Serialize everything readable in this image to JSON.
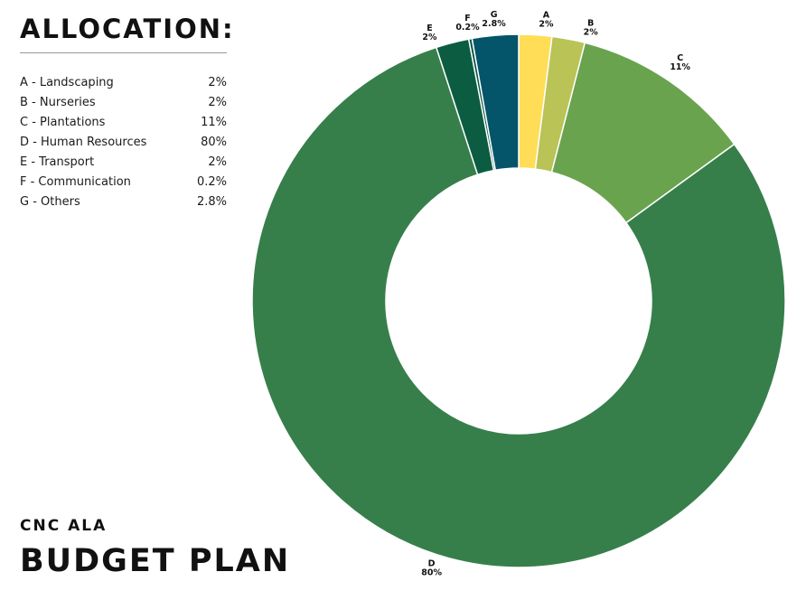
{
  "header": {
    "title": "ALLOCATION:"
  },
  "legend": {
    "items": [
      {
        "code": "A",
        "label": "A - Landscaping",
        "value": "2%"
      },
      {
        "code": "B",
        "label": "B - Nurseries",
        "value": "2%"
      },
      {
        "code": "C",
        "label": "C - Plantations",
        "value": "11%"
      },
      {
        "code": "D",
        "label": "D - Human Resources",
        "value": "80%"
      },
      {
        "code": "E",
        "label": "E - Transport",
        "value": "2%"
      },
      {
        "code": "F",
        "label": "F - Communication",
        "value": "0.2%"
      },
      {
        "code": "G",
        "label": "G - Others",
        "value": "2.8%"
      }
    ]
  },
  "footer": {
    "subtitle": "CNC ALA",
    "title": "BUDGET PLAN"
  },
  "chart_data": {
    "type": "pie",
    "style": "donut",
    "direction": "clockwise",
    "start": "top",
    "categories": [
      "A",
      "B",
      "C",
      "D",
      "E",
      "F",
      "G"
    ],
    "values": [
      2,
      2,
      11,
      80,
      2,
      0.2,
      2.8
    ],
    "value_labels": [
      "2%",
      "2%",
      "11%",
      "80%",
      "2%",
      "0.2%",
      "2.8%"
    ],
    "colors": [
      "#ffdd57",
      "#b9c356",
      "#6aa34e",
      "#367f4b",
      "#0c5c41",
      "#0a5846",
      "#04546a"
    ]
  }
}
